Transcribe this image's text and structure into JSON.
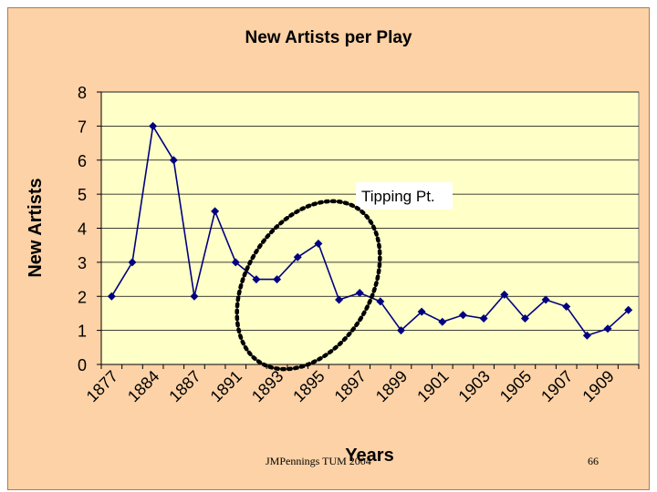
{
  "footer": {
    "author": "JMPennings TUM 2004",
    "page_number": "66"
  },
  "colors": {
    "chart_area_bg": "#fcd2a6",
    "plot_bg": "#ffffc8",
    "series": "#000080",
    "gridline": "#000000"
  },
  "chart_data": {
    "type": "line",
    "title": "New Artists per Play",
    "xlabel": "Years",
    "ylabel": "New Artists",
    "ylim": [
      0,
      8
    ],
    "yticks": [
      0,
      1,
      2,
      3,
      4,
      5,
      6,
      7,
      8
    ],
    "grid": true,
    "legend": "none",
    "x_tick_labels": [
      "1877",
      "1884",
      "1887",
      "1891",
      "1893",
      "1895",
      "1897",
      "1899",
      "1901",
      "1903",
      "1905",
      "1907",
      "1909"
    ],
    "series": [
      {
        "values": [
          2,
          3,
          7,
          6,
          2,
          4.5,
          3,
          2.5,
          2.5,
          3.15,
          3.55,
          1.9,
          2.1,
          1.85,
          1.0,
          1.55,
          1.25,
          1.45,
          1.35,
          2.05,
          1.35,
          1.9,
          1.7,
          0.85,
          1.05,
          1.6
        ]
      }
    ],
    "annotations": [
      {
        "text": "Tipping Pt.",
        "type": "dotted-ellipse"
      }
    ]
  }
}
